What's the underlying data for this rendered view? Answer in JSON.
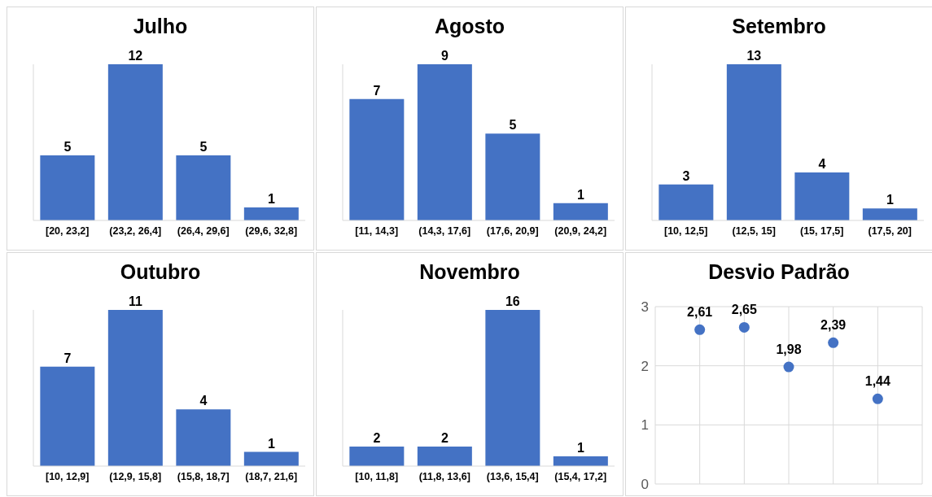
{
  "chart_data": [
    {
      "type": "bar",
      "title": "Julho",
      "categories": [
        "[20, 23,2]",
        "(23,2, 26,4]",
        "(26,4, 29,6]",
        "(29,6, 32,8]"
      ],
      "values": [
        5,
        12,
        5,
        1
      ],
      "color": "#4472c4",
      "data_labels": true
    },
    {
      "type": "bar",
      "title": "Agosto",
      "categories": [
        "[11, 14,3]",
        "(14,3, 17,6]",
        "(17,6, 20,9]",
        "(20,9, 24,2]"
      ],
      "values": [
        7,
        9,
        5,
        1
      ],
      "color": "#4472c4",
      "data_labels": true
    },
    {
      "type": "bar",
      "title": "Setembro",
      "categories": [
        "[10, 12,5]",
        "(12,5, 15]",
        "(15, 17,5]",
        "(17,5, 20]"
      ],
      "values": [
        3,
        13,
        4,
        1
      ],
      "color": "#4472c4",
      "data_labels": true
    },
    {
      "type": "bar",
      "title": "Outubro",
      "categories": [
        "[10, 12,9]",
        "(12,9, 15,8]",
        "(15,8, 18,7]",
        "(18,7, 21,6]"
      ],
      "values": [
        7,
        11,
        4,
        1
      ],
      "color": "#4472c4",
      "data_labels": true
    },
    {
      "type": "bar",
      "title": "Novembro",
      "categories": [
        "[10, 11,8]",
        "(11,8, 13,6]",
        "(13,6, 15,4]",
        "(15,4, 17,2]"
      ],
      "values": [
        2,
        2,
        16,
        1
      ],
      "color": "#4472c4",
      "data_labels": true
    },
    {
      "type": "scatter",
      "title": "Desvio Padrão",
      "categories": [
        null,
        null,
        null,
        null,
        null
      ],
      "values": [
        2.61,
        2.65,
        1.98,
        2.39,
        1.44
      ],
      "color": "#4472c4",
      "ylim": [
        0,
        3
      ],
      "yticks": [
        0,
        1,
        2,
        3
      ],
      "grid": true,
      "marker": "circle",
      "value_labels": [
        "2,61",
        "2,65",
        "1,98",
        "2,39",
        "1,44"
      ]
    }
  ]
}
